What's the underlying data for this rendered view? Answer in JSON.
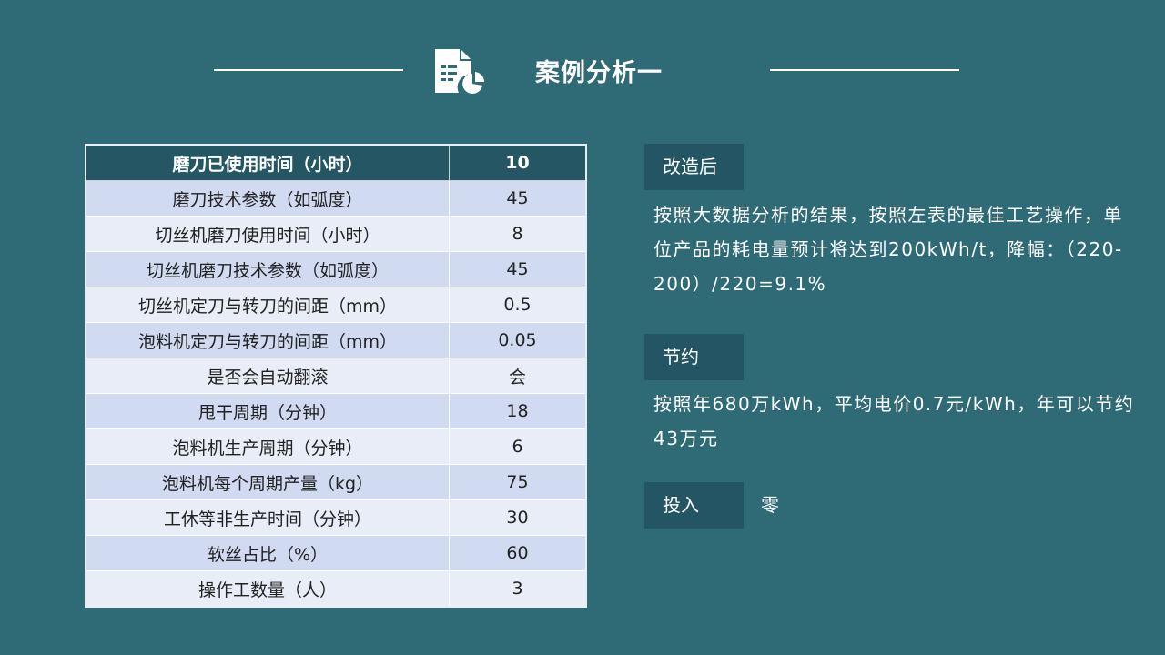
{
  "header": {
    "title": "案例分析一",
    "icon": "document-chart-icon"
  },
  "table": {
    "header": {
      "label": "磨刀已使用时间（小时）",
      "value": "10"
    },
    "rows": [
      {
        "label": "磨刀技术参数（如弧度）",
        "value": "45"
      },
      {
        "label": "切丝机磨刀使用时间（小时）",
        "value": "8"
      },
      {
        "label": "切丝机磨刀技术参数（如弧度）",
        "value": "45"
      },
      {
        "label": "切丝机定刀与转刀的间距（mm）",
        "value": "0.5"
      },
      {
        "label": "泡料机定刀与转刀的间距（mm）",
        "value": "0.05"
      },
      {
        "label": "是否会自动翻滚",
        "value": "会"
      },
      {
        "label": "甩干周期（分钟）",
        "value": "18"
      },
      {
        "label": "泡料机生产周期（分钟）",
        "value": "6"
      },
      {
        "label": "泡料机每个周期产量（kg）",
        "value": "75"
      },
      {
        "label": "工休等非生产时间（分钟）",
        "value": "30"
      },
      {
        "label": "软丝占比（%）",
        "value": "60"
      },
      {
        "label": "操作工数量（人）",
        "value": "3"
      }
    ]
  },
  "sections": {
    "after": {
      "tag": "改造后",
      "text": "按照大数据分析的结果，按照左表的最佳工艺操作，单位产品的耗电量预计将达到200kWh/t，降幅：（220-200）/220=9.1%"
    },
    "saving": {
      "tag": "节约",
      "text": "按照年680万kWh，平均电价0.7元/kWh，年可以节约43万元"
    },
    "investment": {
      "tag": "投入",
      "text": "零"
    }
  }
}
